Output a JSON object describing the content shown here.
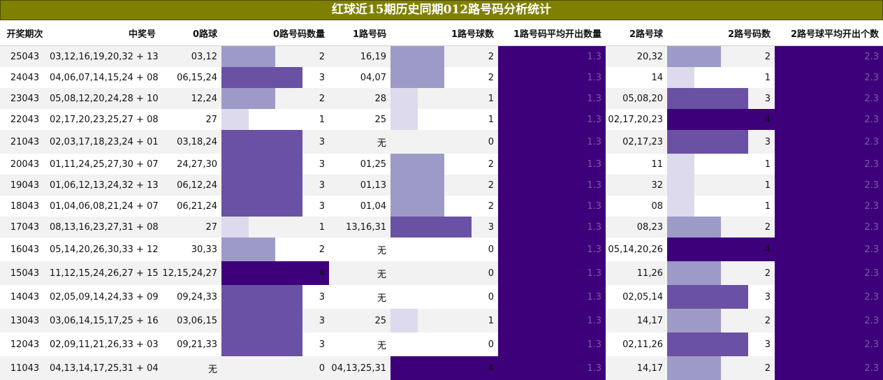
{
  "title": "红球近15期历史同期012路号码分析统计",
  "headers": [
    "开奖期次",
    "中奖号",
    "0路球",
    "0路号码数量",
    "1路号码",
    "1路号球数",
    "1路号码平均开出数量",
    "2路号球",
    "2路号码数",
    "2路号球平均开出个数"
  ],
  "avg1": "1.3",
  "avg2": "2.3",
  "bar_colors": {
    "1": "#dcdaec",
    "2": "#9e9ac8",
    "3": "#6a51a3",
    "4": "#3d007a"
  },
  "rows": [
    {
      "issue": "25043",
      "numbers": "03,12,16,19,20,32 + 13",
      "r0": "03,12",
      "c0": 2,
      "r1": "16,19",
      "c1": 2,
      "r2": "20,32",
      "c2": 2
    },
    {
      "issue": "24043",
      "numbers": "04,06,07,14,15,24 + 08",
      "r0": "06,15,24",
      "c0": 3,
      "r1": "04,07",
      "c1": 2,
      "r2": "14",
      "c2": 1
    },
    {
      "issue": "23043",
      "numbers": "05,08,12,20,24,28 + 10",
      "r0": "12,24",
      "c0": 2,
      "r1": "28",
      "c1": 1,
      "r2": "05,08,20",
      "c2": 3
    },
    {
      "issue": "22043",
      "numbers": "02,17,20,23,25,27 + 08",
      "r0": "27",
      "c0": 1,
      "r1": "25",
      "c1": 1,
      "r2": "02,17,20,23",
      "c2": 4
    },
    {
      "issue": "21043",
      "numbers": "02,03,17,18,23,24 + 01",
      "r0": "03,18,24",
      "c0": 3,
      "r1": "无",
      "c1": 0,
      "r2": "02,17,23",
      "c2": 3
    },
    {
      "issue": "20043",
      "numbers": "01,11,24,25,27,30 + 07",
      "r0": "24,27,30",
      "c0": 3,
      "r1": "01,25",
      "c1": 2,
      "r2": "11",
      "c2": 1
    },
    {
      "issue": "19043",
      "numbers": "01,06,12,13,24,32 + 13",
      "r0": "06,12,24",
      "c0": 3,
      "r1": "01,13",
      "c1": 2,
      "r2": "32",
      "c2": 1
    },
    {
      "issue": "18043",
      "numbers": "01,04,06,08,21,24 + 07",
      "r0": "06,21,24",
      "c0": 3,
      "r1": "01,04",
      "c1": 2,
      "r2": "08",
      "c2": 1
    },
    {
      "issue": "17043",
      "numbers": "08,13,16,23,27,31 + 08",
      "r0": "27",
      "c0": 1,
      "r1": "13,16,31",
      "c1": 3,
      "r2": "08,23",
      "c2": 2
    },
    {
      "issue": "16043",
      "numbers": "05,14,20,26,30,33 + 12",
      "r0": "30,33",
      "c0": 2,
      "r1": "无",
      "c1": 0,
      "r2": "05,14,20,26",
      "c2": 4
    },
    {
      "issue": "15043",
      "numbers": "11,12,15,24,26,27 + 15",
      "r0": "12,15,24,27",
      "c0": 4,
      "r1": "无",
      "c1": 0,
      "r2": "11,26",
      "c2": 2
    },
    {
      "issue": "14043",
      "numbers": "02,05,09,14,24,33 + 09",
      "r0": "09,24,33",
      "c0": 3,
      "r1": "无",
      "c1": 0,
      "r2": "02,05,14",
      "c2": 3
    },
    {
      "issue": "13043",
      "numbers": "03,06,14,15,17,25 + 16",
      "r0": "03,06,15",
      "c0": 3,
      "r1": "25",
      "c1": 1,
      "r2": "14,17",
      "c2": 2
    },
    {
      "issue": "12043",
      "numbers": "02,09,11,21,26,33 + 03",
      "r0": "09,21,33",
      "c0": 3,
      "r1": "无",
      "c1": 0,
      "r2": "02,11,26",
      "c2": 3
    },
    {
      "issue": "11043",
      "numbers": "04,13,14,17,25,31 + 04",
      "r0": "无",
      "c0": 0,
      "r1": "04,13,25,31",
      "c1": 4,
      "r2": "14,17",
      "c2": 2
    }
  ]
}
